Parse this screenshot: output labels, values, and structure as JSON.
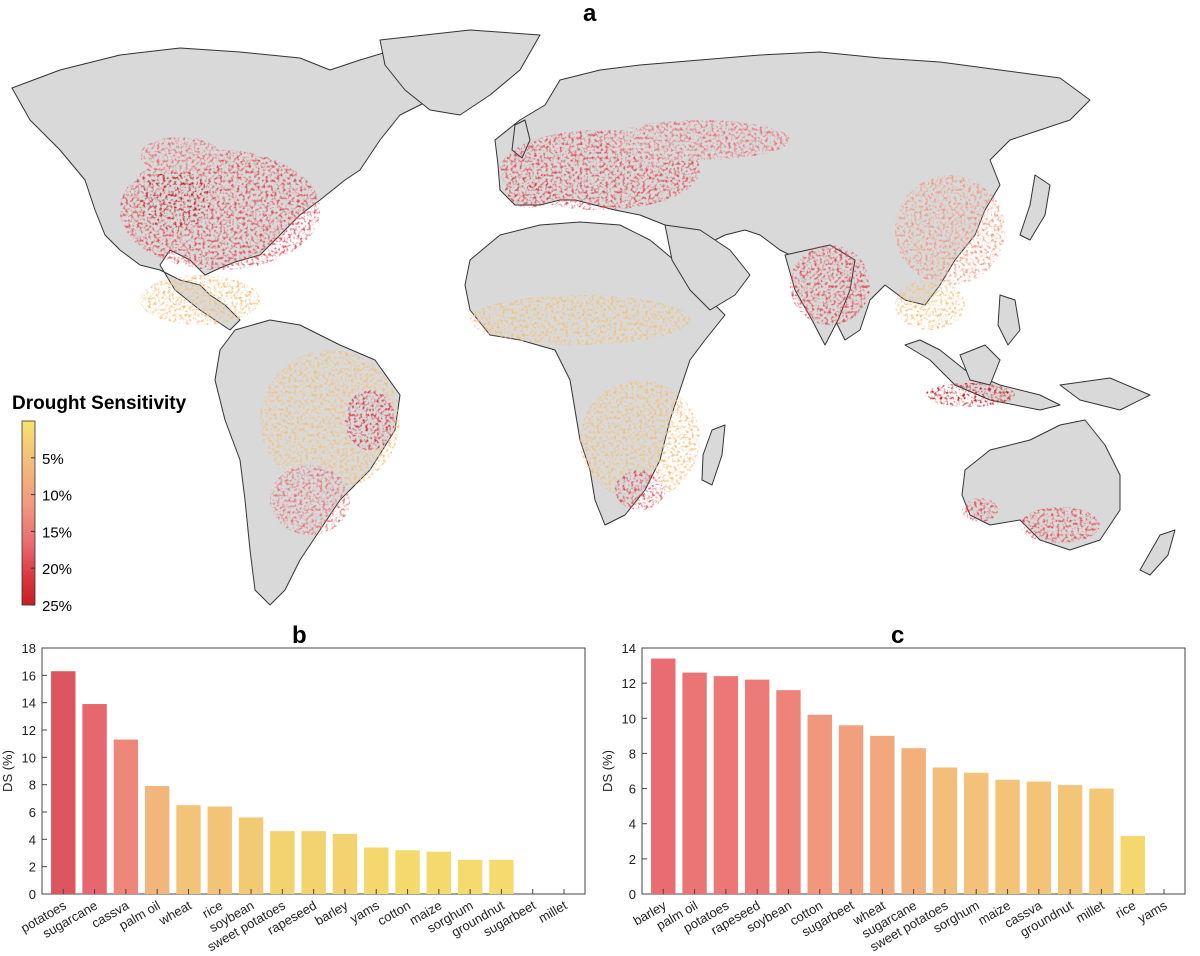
{
  "panels": {
    "a": "a",
    "b": "b",
    "c": "c"
  },
  "legend": {
    "title": "Drought Sensitivity",
    "ticks": [
      {
        "label": "5%",
        "value": 5
      },
      {
        "label": "10%",
        "value": 10
      },
      {
        "label": "15%",
        "value": 15
      },
      {
        "label": "20%",
        "value": 20
      },
      {
        "label": "25%",
        "value": 25
      }
    ],
    "range": [
      0,
      25
    ],
    "colors": [
      "#f7e36a",
      "#f3c07a",
      "#f19a7f",
      "#ea6f74",
      "#d9363e",
      "#c81f24"
    ]
  },
  "map": {
    "land_color": "#d9d9d9",
    "border_color": "#333333"
  },
  "chart_data": [
    {
      "type": "bar",
      "panel": "b",
      "ylabel": "DS (%)",
      "xlabel": "",
      "ylim": [
        0,
        18
      ],
      "yticks": [
        0,
        2,
        4,
        6,
        8,
        10,
        12,
        14,
        16,
        18
      ],
      "categories": [
        "potatoes",
        "sugarcane",
        "cassva",
        "palm oil",
        "wheat",
        "rice",
        "soybean",
        "sweet potatoes",
        "rapeseed",
        "barley",
        "yams",
        "cotton",
        "maize",
        "sorghum",
        "groundnut",
        "sugarbeet",
        "millet"
      ],
      "values": [
        16.3,
        13.9,
        11.3,
        7.9,
        6.5,
        6.4,
        5.6,
        4.6,
        4.6,
        4.4,
        3.4,
        3.2,
        3.1,
        2.5,
        2.5,
        0,
        0
      ]
    },
    {
      "type": "bar",
      "panel": "c",
      "ylabel": "DS (%)",
      "xlabel": "",
      "ylim": [
        0,
        14
      ],
      "yticks": [
        0,
        2,
        4,
        6,
        8,
        10,
        12,
        14
      ],
      "categories": [
        "barley",
        "palm oil",
        "potatoes",
        "rapeseed",
        "soybean",
        "cotton",
        "sugarbeet",
        "wheat",
        "sugarcane",
        "sweet potatoes",
        "sorghum",
        "maize",
        "cassva",
        "groundnut",
        "millet",
        "rice",
        "yams"
      ],
      "values": [
        13.4,
        12.6,
        12.4,
        12.2,
        11.6,
        10.2,
        9.6,
        9.0,
        8.3,
        7.2,
        6.9,
        6.5,
        6.4,
        6.2,
        6.0,
        3.3,
        0
      ]
    }
  ]
}
